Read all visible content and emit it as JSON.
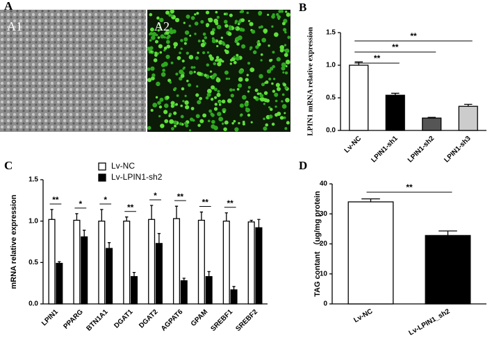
{
  "panel_a": {
    "label": "A",
    "images": [
      "A1",
      "A2"
    ]
  },
  "chart_data": [
    {
      "type": "bar",
      "panel": "B",
      "ylabel": "LPIN1 mRNA relative expression",
      "categories": [
        "Lv-NC",
        "LPIN1-sh1",
        "LPIN1-sh2",
        "LPIN1-sh3"
      ],
      "values": [
        1.0,
        0.54,
        0.19,
        0.37
      ],
      "errors": [
        0.05,
        0.03,
        0.01,
        0.03
      ],
      "colors": [
        "#ffffff",
        "#000000",
        "#555555",
        "#cccccc"
      ],
      "significance": [
        null,
        "**",
        "**",
        "**"
      ],
      "ylim": [
        0,
        1.5
      ],
      "yticks": [
        {
          "value": 0,
          "label": "0.0"
        },
        {
          "value": 0.5,
          "label": "0.5"
        },
        {
          "value": 1,
          "label": "1.0"
        },
        {
          "value": 1.5,
          "label": "1.5"
        }
      ]
    },
    {
      "type": "bar",
      "panel": "C",
      "ylabel": "mRNA relative expression",
      "categories": [
        "LPIN1",
        "PPARG",
        "BTN1A1",
        "DGAT1",
        "DGAT2",
        "AGPAT6",
        "GPAM",
        "SREBF1",
        "SREBF2"
      ],
      "series": [
        {
          "name": "Lv-NC",
          "color": "#ffffff",
          "values": [
            1.02,
            1.01,
            1.0,
            1.0,
            1.02,
            1.03,
            1.01,
            1.0,
            0.99
          ],
          "errors": [
            0.12,
            0.08,
            0.14,
            0.05,
            0.17,
            0.15,
            0.1,
            0.1,
            0.02
          ]
        },
        {
          "name": "Lv-LPIN1-sh2",
          "color": "#000000",
          "values": [
            0.49,
            0.81,
            0.67,
            0.33,
            0.73,
            0.28,
            0.33,
            0.17,
            0.92
          ],
          "errors": [
            0.02,
            0.08,
            0.07,
            0.05,
            0.12,
            0.03,
            0.06,
            0.04,
            0.1
          ]
        }
      ],
      "significance": [
        "**",
        "*",
        "*",
        "**",
        "*",
        "**",
        "**",
        "**",
        null
      ],
      "ylim": [
        0,
        1.5
      ],
      "yticks": [
        {
          "value": 0,
          "label": "0.0"
        },
        {
          "value": 0.5,
          "label": "0.5"
        },
        {
          "value": 1,
          "label": "1.0"
        },
        {
          "value": 1.5,
          "label": "1.5"
        }
      ]
    },
    {
      "type": "bar",
      "panel": "D",
      "ylabel": "TAG contant （ug/mg protein",
      "categories": [
        "Lv-NC",
        "Lv-LPIN1_sh2"
      ],
      "values": [
        34,
        22.8
      ],
      "errors": [
        1,
        1.5
      ],
      "colors": [
        "#ffffff",
        "#000000"
      ],
      "significance": [
        null,
        "**"
      ],
      "ylim": [
        0,
        40
      ],
      "yticks": [
        0,
        10,
        20,
        30,
        40
      ]
    }
  ]
}
